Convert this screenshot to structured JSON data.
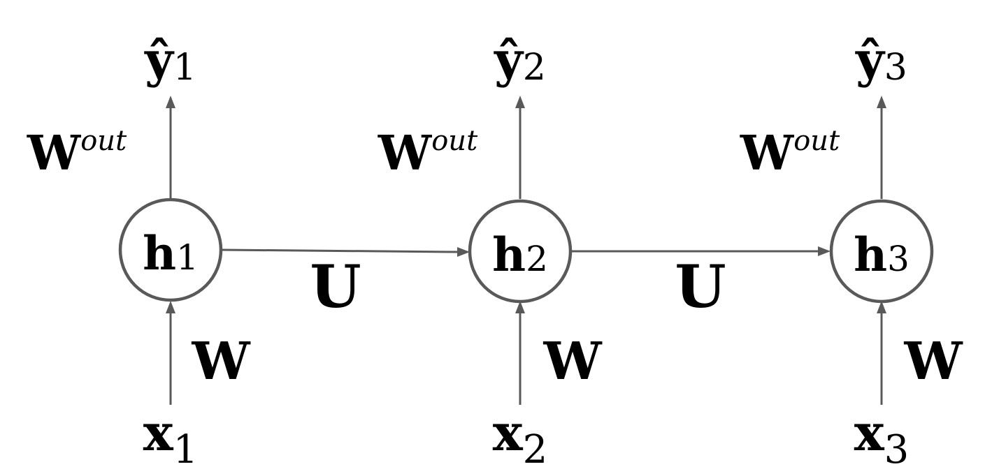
{
  "steps": [
    {
      "input": {
        "sym": "x",
        "sub": "1"
      },
      "hidden": {
        "sym": "h",
        "sub": "1"
      },
      "output": {
        "sym": "ŷ",
        "sub": "1"
      },
      "input_weight": {
        "sym": "W"
      },
      "output_weight": {
        "sym": "W",
        "sup": "out"
      }
    },
    {
      "input": {
        "sym": "x",
        "sub": "2"
      },
      "hidden": {
        "sym": "h",
        "sub": "2"
      },
      "output": {
        "sym": "ŷ",
        "sub": "2"
      },
      "input_weight": {
        "sym": "W"
      },
      "output_weight": {
        "sym": "W",
        "sup": "out"
      }
    },
    {
      "input": {
        "sym": "x",
        "sub": "3"
      },
      "hidden": {
        "sym": "h",
        "sub": "3"
      },
      "output": {
        "sym": "ŷ",
        "sub": "3"
      },
      "input_weight": {
        "sym": "W"
      },
      "output_weight": {
        "sym": "W",
        "sup": "out"
      }
    }
  ],
  "recurrent_weights": [
    {
      "sym": "U"
    },
    {
      "sym": "U"
    }
  ],
  "colors": {
    "edge": "#595959",
    "node_fill": "#ffffff",
    "text": "#000000"
  }
}
